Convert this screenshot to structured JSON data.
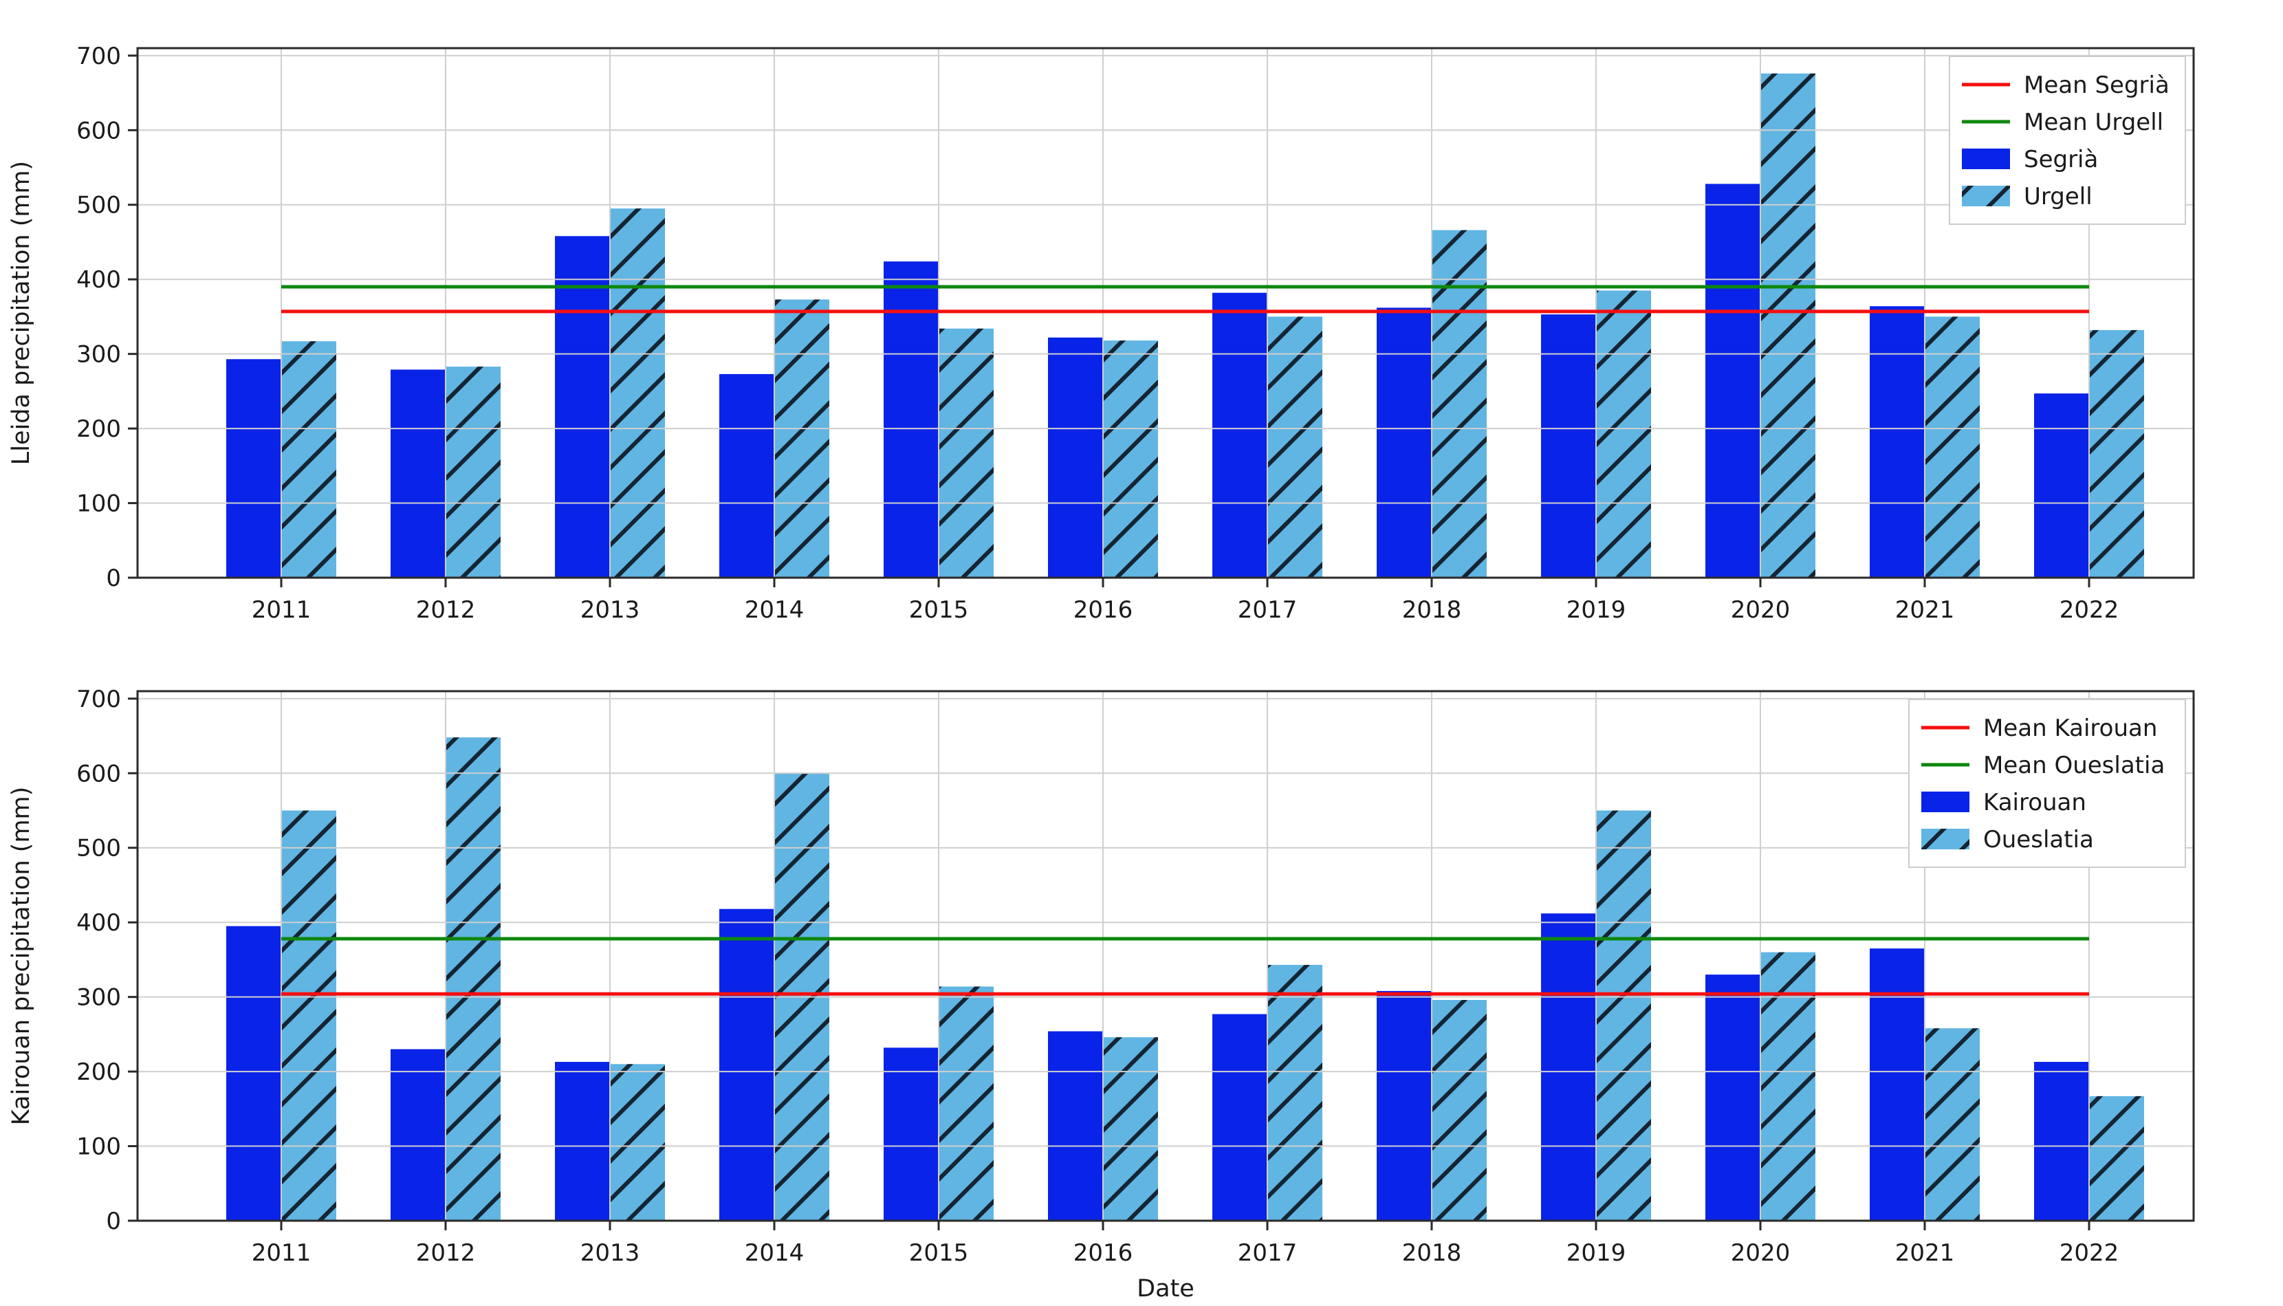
{
  "figure": {
    "background": "#ffffff",
    "xlabel": "Date"
  },
  "palette": {
    "bar_primary": "#0a23e8",
    "bar_secondary": "#60b5e2",
    "hatch": "#152433",
    "mean_primary": "#f50f0f",
    "mean_secondary": "#0e870e",
    "grid": "#cfcfcf",
    "spine": "#2a2a2a",
    "text": "#1a1a1a",
    "legend_border": "#cccccc",
    "legend_bg": "#ffffff"
  },
  "chart_data": [
    {
      "type": "bar",
      "title": "",
      "ylabel": "Lleida precipitation (mm)",
      "xlabel": "",
      "categories": [
        "2011",
        "2012",
        "2013",
        "2014",
        "2015",
        "2016",
        "2017",
        "2018",
        "2019",
        "2020",
        "2021",
        "2022"
      ],
      "series": [
        {
          "name": "Segrià",
          "role": "primary",
          "hatch": false,
          "values": [
            293,
            279,
            458,
            273,
            424,
            322,
            382,
            362,
            353,
            528,
            364,
            247
          ]
        },
        {
          "name": "Urgell",
          "role": "secondary",
          "hatch": true,
          "values": [
            317,
            283,
            495,
            373,
            334,
            318,
            350,
            466,
            385,
            676,
            350,
            332
          ]
        }
      ],
      "mean_lines": [
        {
          "label": "Mean Segrià",
          "value": 357,
          "color_role": "mean_primary"
        },
        {
          "label": "Mean Urgell",
          "value": 390,
          "color_role": "mean_secondary"
        }
      ],
      "legend": [
        "Mean Segrià",
        "Mean Urgell",
        "Segrià",
        "Urgell"
      ],
      "legend_position": "upper right",
      "ylim": [
        0,
        710
      ],
      "yticks": [
        0,
        100,
        200,
        300,
        400,
        500,
        600,
        700
      ],
      "grid": true
    },
    {
      "type": "bar",
      "title": "",
      "ylabel": "Kairouan precipitation (mm)",
      "xlabel": "Date",
      "categories": [
        "2011",
        "2012",
        "2013",
        "2014",
        "2015",
        "2016",
        "2017",
        "2018",
        "2019",
        "2020",
        "2021",
        "2022"
      ],
      "series": [
        {
          "name": "Kairouan",
          "role": "primary",
          "hatch": false,
          "values": [
            395,
            230,
            213,
            418,
            232,
            254,
            277,
            308,
            412,
            330,
            365,
            213
          ]
        },
        {
          "name": "Oueslatia",
          "role": "secondary",
          "hatch": true,
          "values": [
            550,
            648,
            210,
            600,
            314,
            246,
            343,
            296,
            550,
            360,
            258,
            167
          ]
        }
      ],
      "mean_lines": [
        {
          "label": "Mean Kairouan",
          "value": 304,
          "color_role": "mean_primary"
        },
        {
          "label": "Mean Oueslatia",
          "value": 378,
          "color_role": "mean_secondary"
        }
      ],
      "legend": [
        "Mean Kairouan",
        "Mean Oueslatia",
        "Kairouan",
        "Oueslatia"
      ],
      "legend_position": "upper right",
      "ylim": [
        0,
        710
      ],
      "yticks": [
        0,
        100,
        200,
        300,
        400,
        500,
        600,
        700
      ],
      "grid": true
    }
  ]
}
